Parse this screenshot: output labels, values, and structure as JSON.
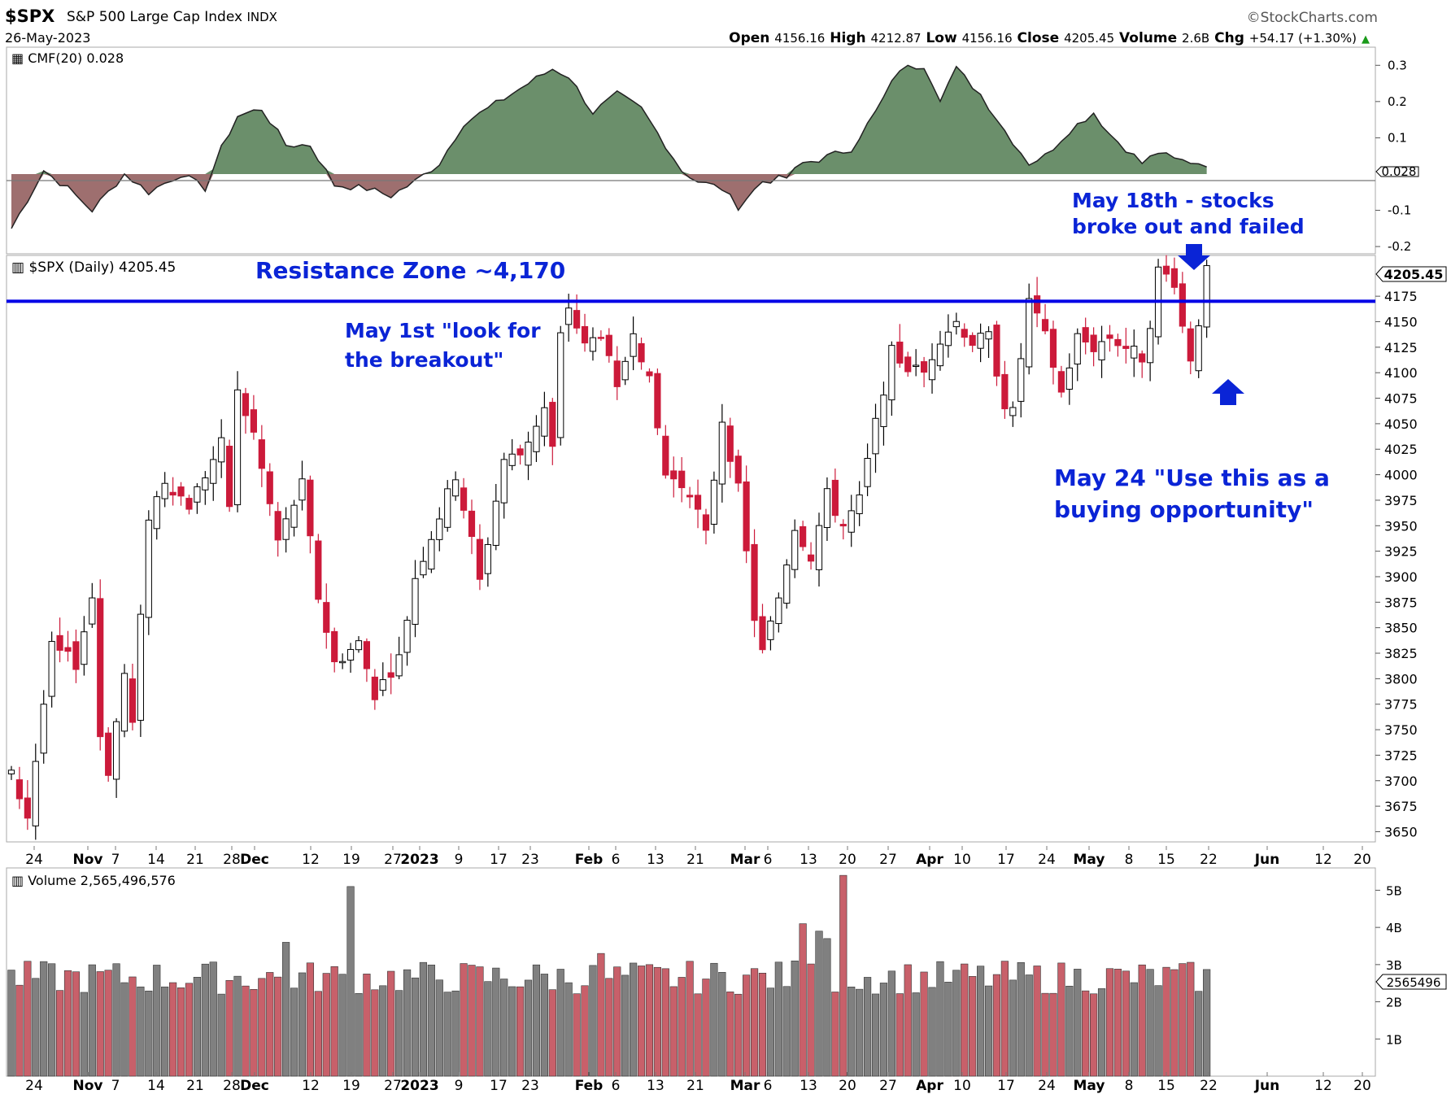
{
  "header": {
    "symbol": "$SPX",
    "name": "S&P 500 Large Cap Index",
    "exchange": "INDX",
    "date": "26-May-2023",
    "watermark": "©StockCharts.com",
    "ohlc": [
      {
        "label": "Open",
        "value": "4156.16"
      },
      {
        "label": "High",
        "value": "4212.87"
      },
      {
        "label": "Low",
        "value": "4156.16"
      },
      {
        "label": "Close",
        "value": "4205.45"
      },
      {
        "label": "Volume",
        "value": "2.6B"
      },
      {
        "label": "Chg",
        "value": "+54.17 (+1.30%)"
      }
    ],
    "chg_arrow": "▲"
  },
  "cmf_panel": {
    "label": "CMF(20) 0.028",
    "current_value_tag": "0.028",
    "y_ticks": [
      "0.3",
      "0.2",
      "0.1",
      "-0.1",
      "-0.2"
    ],
    "positive_color": "#6b8f6b",
    "negative_color": "#9e6f6f"
  },
  "price_panel": {
    "label": "$SPX (Daily) 4205.45",
    "price_tag": "4205.45",
    "y_ticks": [
      "4175",
      "4150",
      "4125",
      "4100",
      "4075",
      "4050",
      "4025",
      "4000",
      "3975",
      "3950",
      "3925",
      "3900",
      "3875",
      "3850",
      "3825",
      "3800",
      "3775",
      "3750",
      "3725",
      "3700",
      "3675",
      "3650"
    ],
    "up_color": "#ffffff",
    "down_color": "#cc1a3a",
    "resistance_color": "#0000e6"
  },
  "annotations": {
    "resistance": "Resistance Zone ~4,170",
    "may1_line1": "May 1st \"look for",
    "may1_line2": "the breakout\"",
    "may18_line1": "May 18th - stocks",
    "may18_line2": "broke out and failed",
    "may24_line1": "May 24 \"Use this as a",
    "may24_line2": "buying opportunity\"",
    "annotation_color": "#0a24d6"
  },
  "x_axis": {
    "labels": [
      {
        "text": "24",
        "bold": false
      },
      {
        "text": "Nov",
        "bold": true
      },
      {
        "text": "7",
        "bold": false
      },
      {
        "text": "14",
        "bold": false
      },
      {
        "text": "21",
        "bold": false
      },
      {
        "text": "28",
        "bold": false
      },
      {
        "text": "Dec",
        "bold": true
      },
      {
        "text": "12",
        "bold": false
      },
      {
        "text": "19",
        "bold": false
      },
      {
        "text": "27",
        "bold": false
      },
      {
        "text": "2023",
        "bold": true
      },
      {
        "text": "9",
        "bold": false
      },
      {
        "text": "17",
        "bold": false
      },
      {
        "text": "23",
        "bold": false
      },
      {
        "text": "Feb",
        "bold": true
      },
      {
        "text": "6",
        "bold": false
      },
      {
        "text": "13",
        "bold": false
      },
      {
        "text": "21",
        "bold": false
      },
      {
        "text": "Mar",
        "bold": true
      },
      {
        "text": "6",
        "bold": false
      },
      {
        "text": "13",
        "bold": false
      },
      {
        "text": "20",
        "bold": false
      },
      {
        "text": "27",
        "bold": false
      },
      {
        "text": "Apr",
        "bold": true
      },
      {
        "text": "10",
        "bold": false
      },
      {
        "text": "17",
        "bold": false
      },
      {
        "text": "24",
        "bold": false
      },
      {
        "text": "May",
        "bold": true
      },
      {
        "text": "8",
        "bold": false
      },
      {
        "text": "15",
        "bold": false
      },
      {
        "text": "22",
        "bold": false
      },
      {
        "text": "Jun",
        "bold": true
      },
      {
        "text": "12",
        "bold": false
      },
      {
        "text": "20",
        "bold": false
      }
    ]
  },
  "volume_panel": {
    "label": "Volume 2,565,496,576",
    "value_tag": "2565496",
    "y_ticks": [
      "5B",
      "4B",
      "3B",
      "2B",
      "1B"
    ],
    "up_color": "#808080",
    "down_color": "#c8606a"
  },
  "chart_data": {
    "type": "candlestick",
    "title": "$SPX S&P 500 Large Cap Index",
    "price_ylim": [
      3640,
      4215
    ],
    "cmf_ylim": [
      -0.22,
      0.35
    ],
    "volume_ylim": [
      0,
      5.6
    ],
    "resistance_level": 4170,
    "bars_shown": 154,
    "close_waypoints": [
      {
        "i": 0,
        "v": 3705
      },
      {
        "i": 2,
        "v": 3665
      },
      {
        "i": 5,
        "v": 3830
      },
      {
        "i": 8,
        "v": 3815
      },
      {
        "i": 10,
        "v": 3880
      },
      {
        "i": 11,
        "v": 3745
      },
      {
        "i": 12,
        "v": 3710
      },
      {
        "i": 14,
        "v": 3805
      },
      {
        "i": 15,
        "v": 3755
      },
      {
        "i": 17,
        "v": 3960
      },
      {
        "i": 19,
        "v": 3995
      },
      {
        "i": 22,
        "v": 3970
      },
      {
        "i": 26,
        "v": 4030
      },
      {
        "i": 27,
        "v": 3970
      },
      {
        "i": 28,
        "v": 4080
      },
      {
        "i": 30,
        "v": 4040
      },
      {
        "i": 33,
        "v": 3935
      },
      {
        "i": 36,
        "v": 3990
      },
      {
        "i": 38,
        "v": 3880
      },
      {
        "i": 40,
        "v": 3815
      },
      {
        "i": 43,
        "v": 3835
      },
      {
        "i": 45,
        "v": 3785
      },
      {
        "i": 48,
        "v": 3820
      },
      {
        "i": 50,
        "v": 3900
      },
      {
        "i": 53,
        "v": 3960
      },
      {
        "i": 55,
        "v": 4000
      },
      {
        "i": 57,
        "v": 3935
      },
      {
        "i": 58,
        "v": 3895
      },
      {
        "i": 61,
        "v": 4015
      },
      {
        "i": 63,
        "v": 4020
      },
      {
        "i": 66,
        "v": 4065
      },
      {
        "i": 67,
        "v": 4025
      },
      {
        "i": 68,
        "v": 4135
      },
      {
        "i": 69,
        "v": 4165
      },
      {
        "i": 71,
        "v": 4125
      },
      {
        "i": 73,
        "v": 4140
      },
      {
        "i": 75,
        "v": 4080
      },
      {
        "i": 77,
        "v": 4145
      },
      {
        "i": 79,
        "v": 4090
      },
      {
        "i": 81,
        "v": 4000
      },
      {
        "i": 84,
        "v": 3985
      },
      {
        "i": 86,
        "v": 3940
      },
      {
        "i": 88,
        "v": 4055
      },
      {
        "i": 90,
        "v": 3985
      },
      {
        "i": 92,
        "v": 3860
      },
      {
        "i": 93,
        "v": 3825
      },
      {
        "i": 95,
        "v": 3880
      },
      {
        "i": 97,
        "v": 3950
      },
      {
        "i": 99,
        "v": 3920
      },
      {
        "i": 101,
        "v": 3980
      },
      {
        "i": 103,
        "v": 3950
      },
      {
        "i": 105,
        "v": 3975
      },
      {
        "i": 107,
        "v": 4050
      },
      {
        "i": 109,
        "v": 4120
      },
      {
        "i": 111,
        "v": 4105
      },
      {
        "i": 113,
        "v": 4100
      },
      {
        "i": 115,
        "v": 4135
      },
      {
        "i": 117,
        "v": 4150
      },
      {
        "i": 119,
        "v": 4130
      },
      {
        "i": 121,
        "v": 4135
      },
      {
        "i": 123,
        "v": 4070
      },
      {
        "i": 124,
        "v": 4060
      },
      {
        "i": 126,
        "v": 4170
      },
      {
        "i": 128,
        "v": 4135
      },
      {
        "i": 130,
        "v": 4080
      },
      {
        "i": 132,
        "v": 4135
      },
      {
        "i": 134,
        "v": 4125
      },
      {
        "i": 136,
        "v": 4135
      },
      {
        "i": 138,
        "v": 4125
      },
      {
        "i": 140,
        "v": 4115
      },
      {
        "i": 141,
        "v": 4150
      },
      {
        "i": 142,
        "v": 4200
      },
      {
        "i": 143,
        "v": 4195
      },
      {
        "i": 144,
        "v": 4190
      },
      {
        "i": 145,
        "v": 4145
      },
      {
        "i": 146,
        "v": 4115
      },
      {
        "i": 147,
        "v": 4151
      },
      {
        "i": 148,
        "v": 4205
      }
    ],
    "cmf_waypoints": [
      {
        "i": 0,
        "v": -0.15
      },
      {
        "i": 4,
        "v": 0.01
      },
      {
        "i": 7,
        "v": -0.04
      },
      {
        "i": 10,
        "v": -0.1
      },
      {
        "i": 14,
        "v": 0.0
      },
      {
        "i": 17,
        "v": -0.05
      },
      {
        "i": 21,
        "v": 0.0
      },
      {
        "i": 24,
        "v": -0.04
      },
      {
        "i": 26,
        "v": 0.07
      },
      {
        "i": 28,
        "v": 0.16
      },
      {
        "i": 31,
        "v": 0.18
      },
      {
        "i": 34,
        "v": 0.08
      },
      {
        "i": 37,
        "v": 0.08
      },
      {
        "i": 40,
        "v": -0.03
      },
      {
        "i": 44,
        "v": -0.04
      },
      {
        "i": 47,
        "v": -0.06
      },
      {
        "i": 50,
        "v": -0.02
      },
      {
        "i": 53,
        "v": 0.03
      },
      {
        "i": 56,
        "v": 0.14
      },
      {
        "i": 59,
        "v": 0.18
      },
      {
        "i": 64,
        "v": 0.25
      },
      {
        "i": 67,
        "v": 0.29
      },
      {
        "i": 69,
        "v": 0.27
      },
      {
        "i": 72,
        "v": 0.17
      },
      {
        "i": 75,
        "v": 0.22
      },
      {
        "i": 78,
        "v": 0.18
      },
      {
        "i": 81,
        "v": 0.08
      },
      {
        "i": 83,
        "v": 0.01
      },
      {
        "i": 85,
        "v": -0.02
      },
      {
        "i": 88,
        "v": -0.04
      },
      {
        "i": 90,
        "v": -0.09
      },
      {
        "i": 93,
        "v": -0.02
      },
      {
        "i": 96,
        "v": -0.01
      },
      {
        "i": 98,
        "v": 0.03
      },
      {
        "i": 100,
        "v": 0.04
      },
      {
        "i": 104,
        "v": 0.07
      },
      {
        "i": 107,
        "v": 0.17
      },
      {
        "i": 110,
        "v": 0.29
      },
      {
        "i": 113,
        "v": 0.3
      },
      {
        "i": 115,
        "v": 0.21
      },
      {
        "i": 117,
        "v": 0.29
      },
      {
        "i": 120,
        "v": 0.22
      },
      {
        "i": 123,
        "v": 0.12
      },
      {
        "i": 126,
        "v": 0.03
      },
      {
        "i": 128,
        "v": 0.05
      },
      {
        "i": 131,
        "v": 0.12
      },
      {
        "i": 134,
        "v": 0.17
      },
      {
        "i": 136,
        "v": 0.11
      },
      {
        "i": 138,
        "v": 0.07
      },
      {
        "i": 140,
        "v": 0.03
      },
      {
        "i": 142,
        "v": 0.06
      },
      {
        "i": 144,
        "v": 0.04
      },
      {
        "i": 148,
        "v": 0.028
      }
    ]
  }
}
